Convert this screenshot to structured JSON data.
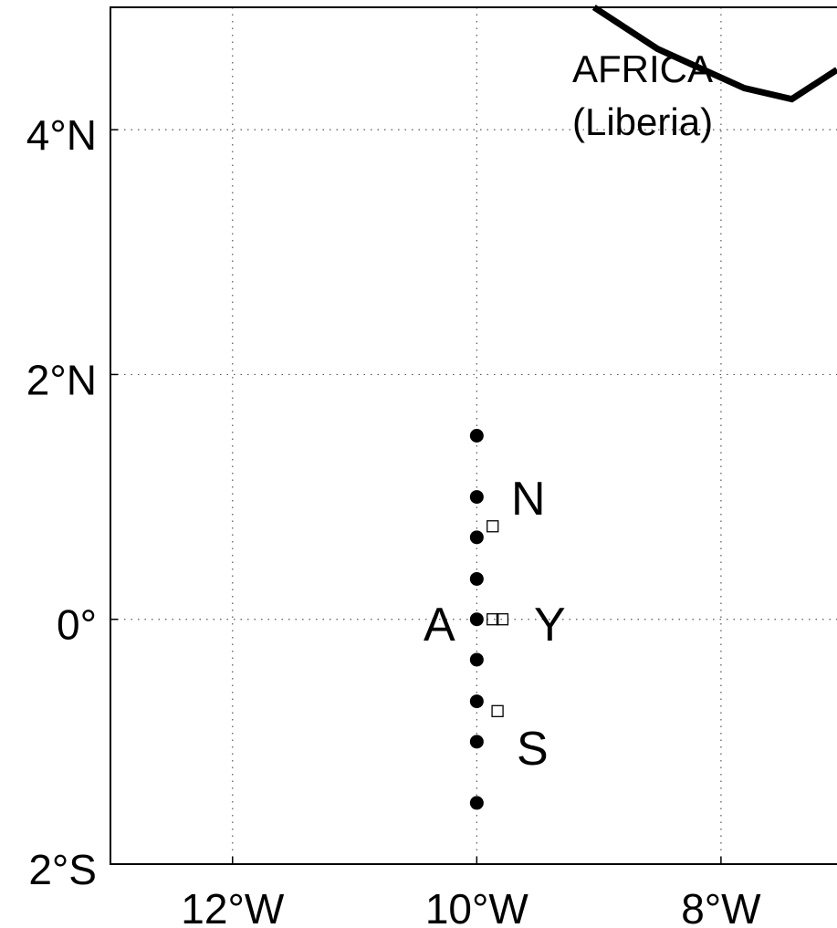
{
  "chart_data": {
    "type": "scatter",
    "xlim": [
      -13,
      -7.05
    ],
    "ylim": [
      -2,
      5
    ],
    "xticks": [
      {
        "value": -12,
        "label": "12°W"
      },
      {
        "value": -10,
        "label": "10°W"
      },
      {
        "value": -8,
        "label": "8°W"
      }
    ],
    "yticks": [
      {
        "value": -2,
        "label": "2°S"
      },
      {
        "value": 0,
        "label": "0°"
      },
      {
        "value": 2,
        "label": "2°N"
      },
      {
        "value": 4,
        "label": "4°N"
      }
    ],
    "grid": true,
    "series": [
      {
        "marker": "circle",
        "color": "#000000",
        "x": [
          -10,
          -10,
          -10,
          -10,
          -10,
          -10,
          -10,
          -10,
          -10
        ],
        "values": [
          1.5,
          1.0,
          0.67,
          0.33,
          0,
          -0.33,
          -0.67,
          -1.0,
          -1.5
        ]
      },
      {
        "marker": "square",
        "color": "#000000",
        "x": [
          -9.87,
          -9.87,
          -9.79,
          -9.83
        ],
        "values": [
          0.76,
          0,
          0,
          -0.75
        ]
      },
      {
        "marker": "line",
        "color": "#000000",
        "x": [
          -9.04,
          -8.52,
          -7.81,
          -7.42,
          -7.05
        ],
        "values": [
          5.0,
          4.66,
          4.34,
          4.25,
          4.49
        ]
      }
    ],
    "annotations": [
      "AFRICA",
      "(Liberia)",
      "N",
      "A",
      "Y",
      "S"
    ]
  }
}
